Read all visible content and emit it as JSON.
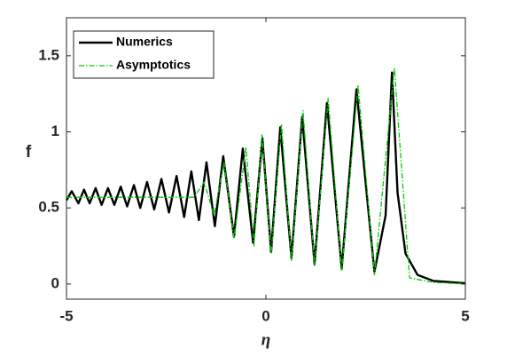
{
  "chart_data": {
    "type": "line",
    "xlabel": "η",
    "ylabel": "f",
    "xlim": [
      -5,
      5
    ],
    "ylim": [
      -0.1,
      1.75
    ],
    "xticks": [
      -5,
      0,
      5
    ],
    "yticks": [
      0,
      0.5,
      1,
      1.5
    ],
    "grid": false,
    "legend": "upper left",
    "series": [
      {
        "name": "Numerics",
        "color": "#000000",
        "dash": false,
        "x": [
          -5,
          -4.87,
          -4.7,
          -4.56,
          -4.42,
          -4.27,
          -4.12,
          -3.96,
          -3.8,
          -3.64,
          -3.48,
          -3.31,
          -3.15,
          -2.98,
          -2.8,
          -2.62,
          -2.43,
          -2.24,
          -2.05,
          -1.87,
          -1.68,
          -1.49,
          -1.28,
          -1.07,
          -0.8,
          -0.58,
          -0.32,
          -0.09,
          0.13,
          0.36,
          0.64,
          0.91,
          1.22,
          1.53,
          1.9,
          2.27,
          2.72,
          3.0,
          3.16,
          3.3,
          3.5,
          3.8,
          4.2,
          5
        ],
        "values": [
          0.55,
          0.61,
          0.53,
          0.62,
          0.53,
          0.63,
          0.52,
          0.63,
          0.52,
          0.64,
          0.51,
          0.65,
          0.5,
          0.67,
          0.49,
          0.69,
          0.47,
          0.71,
          0.44,
          0.74,
          0.42,
          0.8,
          0.38,
          0.84,
          0.31,
          0.89,
          0.27,
          0.96,
          0.21,
          1.03,
          0.17,
          1.1,
          0.13,
          1.19,
          0.1,
          1.28,
          0.08,
          0.45,
          1.39,
          0.6,
          0.2,
          0.06,
          0.02,
          0.005
        ]
      },
      {
        "name": "Asymptotics",
        "color": "#00cc00",
        "dash": true,
        "x": [
          -5,
          -1.8,
          -1.55,
          -1.3,
          -1.05,
          -0.8,
          -0.5,
          -0.3,
          -0.1,
          0.13,
          0.39,
          0.64,
          0.93,
          1.22,
          1.56,
          1.9,
          2.31,
          2.72,
          3.22,
          3.6,
          4.2,
          5
        ],
        "values": [
          0.57,
          0.57,
          0.67,
          0.45,
          0.8,
          0.3,
          0.9,
          0.25,
          0.98,
          0.2,
          1.05,
          0.15,
          1.14,
          0.12,
          1.22,
          0.09,
          1.31,
          0.06,
          1.42,
          0.04,
          0.01,
          0
        ]
      }
    ]
  }
}
